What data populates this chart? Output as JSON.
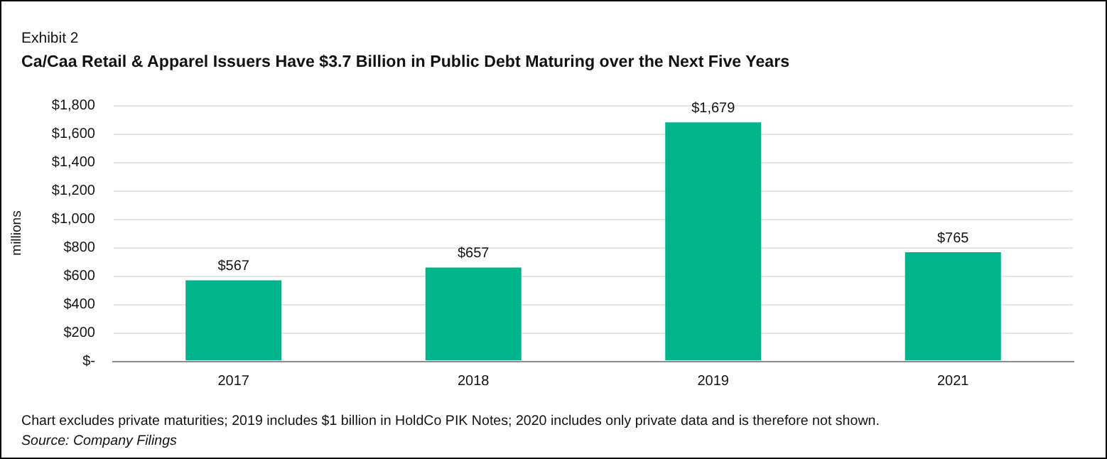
{
  "chart_data": {
    "type": "bar",
    "title": "Ca/Caa Retail & Apparel Issuers Have $3.7 Billion in Public Debt Maturing over the Next Five Years",
    "ylabel": "millions",
    "annotations": [
      "Exhibit 2",
      "Chart excludes private maturities; 2019 includes $1 billion in HoldCo PIK Notes; 2020 includes only private data and is therefore not shown.",
      "Source: Company Filings"
    ],
    "categories": [
      "2017",
      "2018",
      "2019",
      "2021"
    ],
    "values": [
      567,
      657,
      1679,
      765
    ],
    "value_labels": [
      "$567",
      "$657",
      "$1,679",
      "$765"
    ],
    "color": "#00b48c",
    "ylim": [
      0,
      1800
    ],
    "yticks": [
      {
        "value": 0,
        "label": "$-"
      },
      {
        "value": 200,
        "label": "$200"
      },
      {
        "value": 400,
        "label": "$400"
      },
      {
        "value": 600,
        "label": "$600"
      },
      {
        "value": 800,
        "label": "$800"
      },
      {
        "value": 1000,
        "label": "$1,000"
      },
      {
        "value": 1200,
        "label": "$1,200"
      },
      {
        "value": 1400,
        "label": "$1,400"
      },
      {
        "value": 1600,
        "label": "$1,600"
      },
      {
        "value": 1800,
        "label": "$1,800"
      }
    ],
    "grid": "y"
  }
}
